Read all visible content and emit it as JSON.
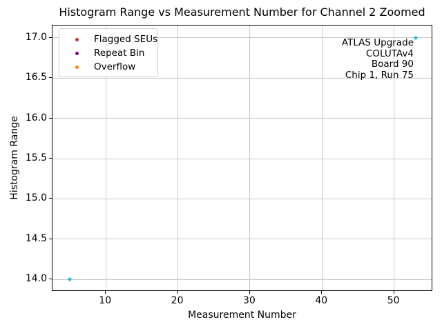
{
  "chart": {
    "title": "Histogram Range vs Measurement Number for Channel 2 Zoomed",
    "xlabel": "Measurement Number",
    "ylabel": "Histogram Range"
  },
  "legend": {
    "items": [
      {
        "label": "Flagged SEUs",
        "color": "#d62728"
      },
      {
        "label": "Repeat Bin",
        "color": "#800080"
      },
      {
        "label": "Overflow",
        "color": "#ff7f0e"
      }
    ]
  },
  "annotation": {
    "lines": [
      "ATLAS Upgrade",
      "COLUTAv4",
      "Board 90",
      "Chip 1, Run 75"
    ]
  },
  "chart_data": {
    "type": "scatter",
    "title": "Histogram Range vs Measurement Number for Channel 2 Zoomed",
    "xlabel": "Measurement Number",
    "ylabel": "Histogram Range",
    "xlim": [
      2.6,
      55.4
    ],
    "ylim": [
      13.85,
      17.15
    ],
    "xticks": [
      10,
      20,
      30,
      40,
      50
    ],
    "xtick_labels": [
      "10",
      "20",
      "30",
      "40",
      "50"
    ],
    "yticks": [
      14.0,
      14.5,
      15.0,
      15.5,
      16.0,
      16.5,
      17.0
    ],
    "ytick_labels": [
      "14.0",
      "14.5",
      "15.0",
      "15.5",
      "16.0",
      "16.5",
      "17.0"
    ],
    "grid": true,
    "grid_color": "#c8c8c8",
    "legend_position": "upper left",
    "series": [
      {
        "name": "Flagged SEUs",
        "color": "#d62728",
        "points": []
      },
      {
        "name": "Repeat Bin",
        "color": "#800080",
        "points": []
      },
      {
        "name": "Overflow",
        "color": "#ff7f0e",
        "points": []
      },
      {
        "name": "Histogram Range",
        "color": "#17becf",
        "points": [
          [
            5,
            14.0
          ],
          [
            53,
            17.0
          ]
        ]
      }
    ],
    "annotation_text": [
      "ATLAS Upgrade",
      "COLUTAv4",
      "Board 90",
      "Chip 1, Run 75"
    ]
  }
}
